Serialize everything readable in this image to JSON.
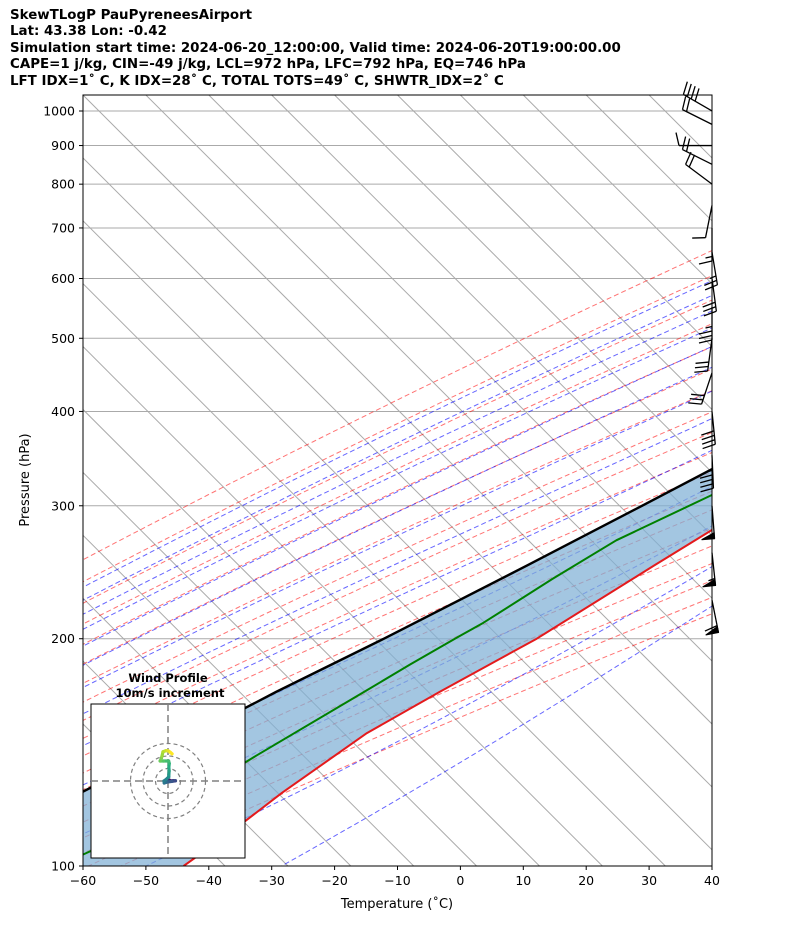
{
  "header": {
    "line1": "SkewTLogP PauPyreneesAirport",
    "line2": "Lat: 43.38   Lon: -0.42",
    "line3": "Simulation start time: 2024-06-20_12:00:00, Valid time: 2024-06-20T19:00:00.00",
    "line4": "CAPE=1 j/kg, CIN=-49 j/kg, LCL=972 hPa, LFC=792 hPa, EQ=746 hPa",
    "line5": "LFT IDX=1˚ C, K IDX=28˚ C, TOTAL TOTS=49˚ C, SHWTR_IDX=2˚ C"
  },
  "chart_data": [
    {
      "type": "line",
      "subtype": "skew-T log-P",
      "xlabel": "Temperature (˚C)",
      "ylabel": "Pressure (hPa)",
      "xlim": [
        -60,
        40
      ],
      "ylim": [
        1050,
        100
      ],
      "yscale": "log",
      "x_ticks": [
        "−60",
        "−50",
        "−40",
        "−30",
        "−20",
        "−10",
        "0",
        "10",
        "20",
        "30",
        "40"
      ],
      "y_ticks": [
        "100",
        "200",
        "300",
        "400",
        "500",
        "600",
        "700",
        "800",
        "900",
        "1000"
      ],
      "grid": true,
      "series": [
        {
          "role": "temperature",
          "color": "#e41a1c",
          "points": [
            [
              17,
              1000
            ],
            [
              15,
              950
            ],
            [
              15,
              900
            ],
            [
              13.5,
              850
            ],
            [
              12.5,
              800
            ],
            [
              11.5,
              750
            ],
            [
              10.5,
              700
            ],
            [
              8.5,
              650
            ],
            [
              6.5,
              600
            ],
            [
              4.5,
              550
            ],
            [
              2.5,
              500
            ],
            [
              0.5,
              450
            ],
            [
              -2.5,
              400
            ],
            [
              -6,
              350
            ],
            [
              -11,
              300
            ],
            [
              -17,
              250
            ],
            [
              -24,
              200
            ],
            [
              -31,
              170
            ],
            [
              -36,
              150
            ],
            [
              -40,
              125
            ],
            [
              -42,
              110
            ],
            [
              -44,
              100
            ]
          ]
        },
        {
          "role": "dewpoint",
          "color": "#008000",
          "points": [
            [
              16,
              1000
            ],
            [
              15,
              950
            ],
            [
              14,
              900
            ],
            [
              12,
              850
            ],
            [
              12,
              800
            ],
            [
              10,
              750
            ],
            [
              7,
              700
            ],
            [
              4,
              650
            ],
            [
              2.5,
              600
            ],
            [
              2,
              550
            ],
            [
              -2,
              500
            ],
            [
              -16,
              450
            ],
            [
              -9,
              420
            ],
            [
              -11,
              400
            ],
            [
              -15,
              360
            ],
            [
              -17,
              340
            ],
            [
              -19,
              310
            ],
            [
              -27,
              270
            ],
            [
              -31,
              240
            ],
            [
              -35,
              210
            ],
            [
              -37,
              200
            ],
            [
              -40,
              185
            ],
            [
              -43,
              170
            ],
            [
              -50,
              140
            ],
            [
              -58,
              110
            ],
            [
              -64,
              100
            ]
          ]
        },
        {
          "role": "parcel",
          "color": "#000000",
          "points": [
            [
              17,
              1000
            ],
            [
              16,
              972
            ],
            [
              15,
              950
            ],
            [
              13.6,
              900
            ],
            [
              12.1,
              850
            ],
            [
              10.4,
              800
            ],
            [
              8.5,
              750
            ],
            [
              6.4,
              700
            ],
            [
              4,
              650
            ],
            [
              1.2,
              600
            ],
            [
              -1.9,
              550
            ],
            [
              -5.5,
              500
            ],
            [
              -9.8,
              450
            ],
            [
              -15,
              400
            ],
            [
              -21.1,
              350
            ],
            [
              -28.4,
              300
            ],
            [
              -37.2,
              250
            ],
            [
              -48.3,
              200
            ],
            [
              -57,
              170
            ],
            [
              -63,
              150
            ],
            [
              -72,
              125
            ],
            [
              -78,
              110
            ],
            [
              -82,
              100
            ]
          ]
        }
      ],
      "cape_region_color": "#7fb0d6",
      "wind_barbs": [
        {
          "pressure": 1000,
          "u": -17.3,
          "v": 10
        },
        {
          "pressure": 960,
          "u": -10,
          "v": 5
        },
        {
          "pressure": 900,
          "u": -5,
          "v": 0
        },
        {
          "pressure": 850,
          "u": -10,
          "v": 5
        },
        {
          "pressure": 800,
          "u": -8,
          "v": 6
        },
        {
          "pressure": 750,
          "u": -1,
          "v": -5
        },
        {
          "pressure": 700,
          "u": 0,
          "v": -7
        },
        {
          "pressure": 650,
          "u": 2,
          "v": -12
        },
        {
          "pressure": 600,
          "u": 2,
          "v": -15
        },
        {
          "pressure": 550,
          "u": 0,
          "v": -18
        },
        {
          "pressure": 500,
          "u": -2,
          "v": -15
        },
        {
          "pressure": 450,
          "u": -5,
          "v": -15
        },
        {
          "pressure": 400,
          "u": 2,
          "v": -20
        },
        {
          "pressure": 350,
          "u": 1,
          "v": -23
        },
        {
          "pressure": 300,
          "u": 2,
          "v": -26
        },
        {
          "pressure": 260,
          "u": 3,
          "v": -28
        },
        {
          "pressure": 225,
          "u": 6,
          "v": -30
        }
      ]
    },
    {
      "type": "line",
      "subtype": "hodograph",
      "title": "Wind Profile",
      "subtitle": "10m/s increment",
      "rings_ms": [
        10,
        20,
        30
      ],
      "colormap": "viridis",
      "points": [
        [
          0,
          0
        ],
        [
          1.3,
          0.6
        ],
        [
          2,
          0.3
        ],
        [
          3,
          0
        ],
        [
          4,
          0.3
        ],
        [
          5,
          0.1
        ],
        [
          6,
          0.2
        ],
        [
          3,
          -0.3
        ],
        [
          0,
          -0.7
        ],
        [
          -1.5,
          -1
        ],
        [
          -3,
          -1.6
        ],
        [
          -3.2,
          0
        ],
        [
          -1,
          1.7
        ],
        [
          0.6,
          3.3
        ],
        [
          0.7,
          5.3
        ],
        [
          0.9,
          8
        ],
        [
          0.7,
          11
        ],
        [
          1,
          14
        ],
        [
          0.5,
          16
        ],
        [
          -3.6,
          16
        ],
        [
          -6.3,
          16
        ],
        [
          -5.3,
          18.2
        ],
        [
          -4.8,
          20
        ],
        [
          -4,
          23.4
        ],
        [
          -1.8,
          24.2
        ],
        [
          0,
          24.2
        ],
        [
          1.8,
          23
        ],
        [
          3.3,
          21.7
        ]
      ]
    }
  ],
  "colors": {
    "dry_adiabat": "#ff0000",
    "moist_adiabat": "#0000ff",
    "mixing_ratio": "#9400d3",
    "isotherm_grid": "#aaaaaa"
  }
}
